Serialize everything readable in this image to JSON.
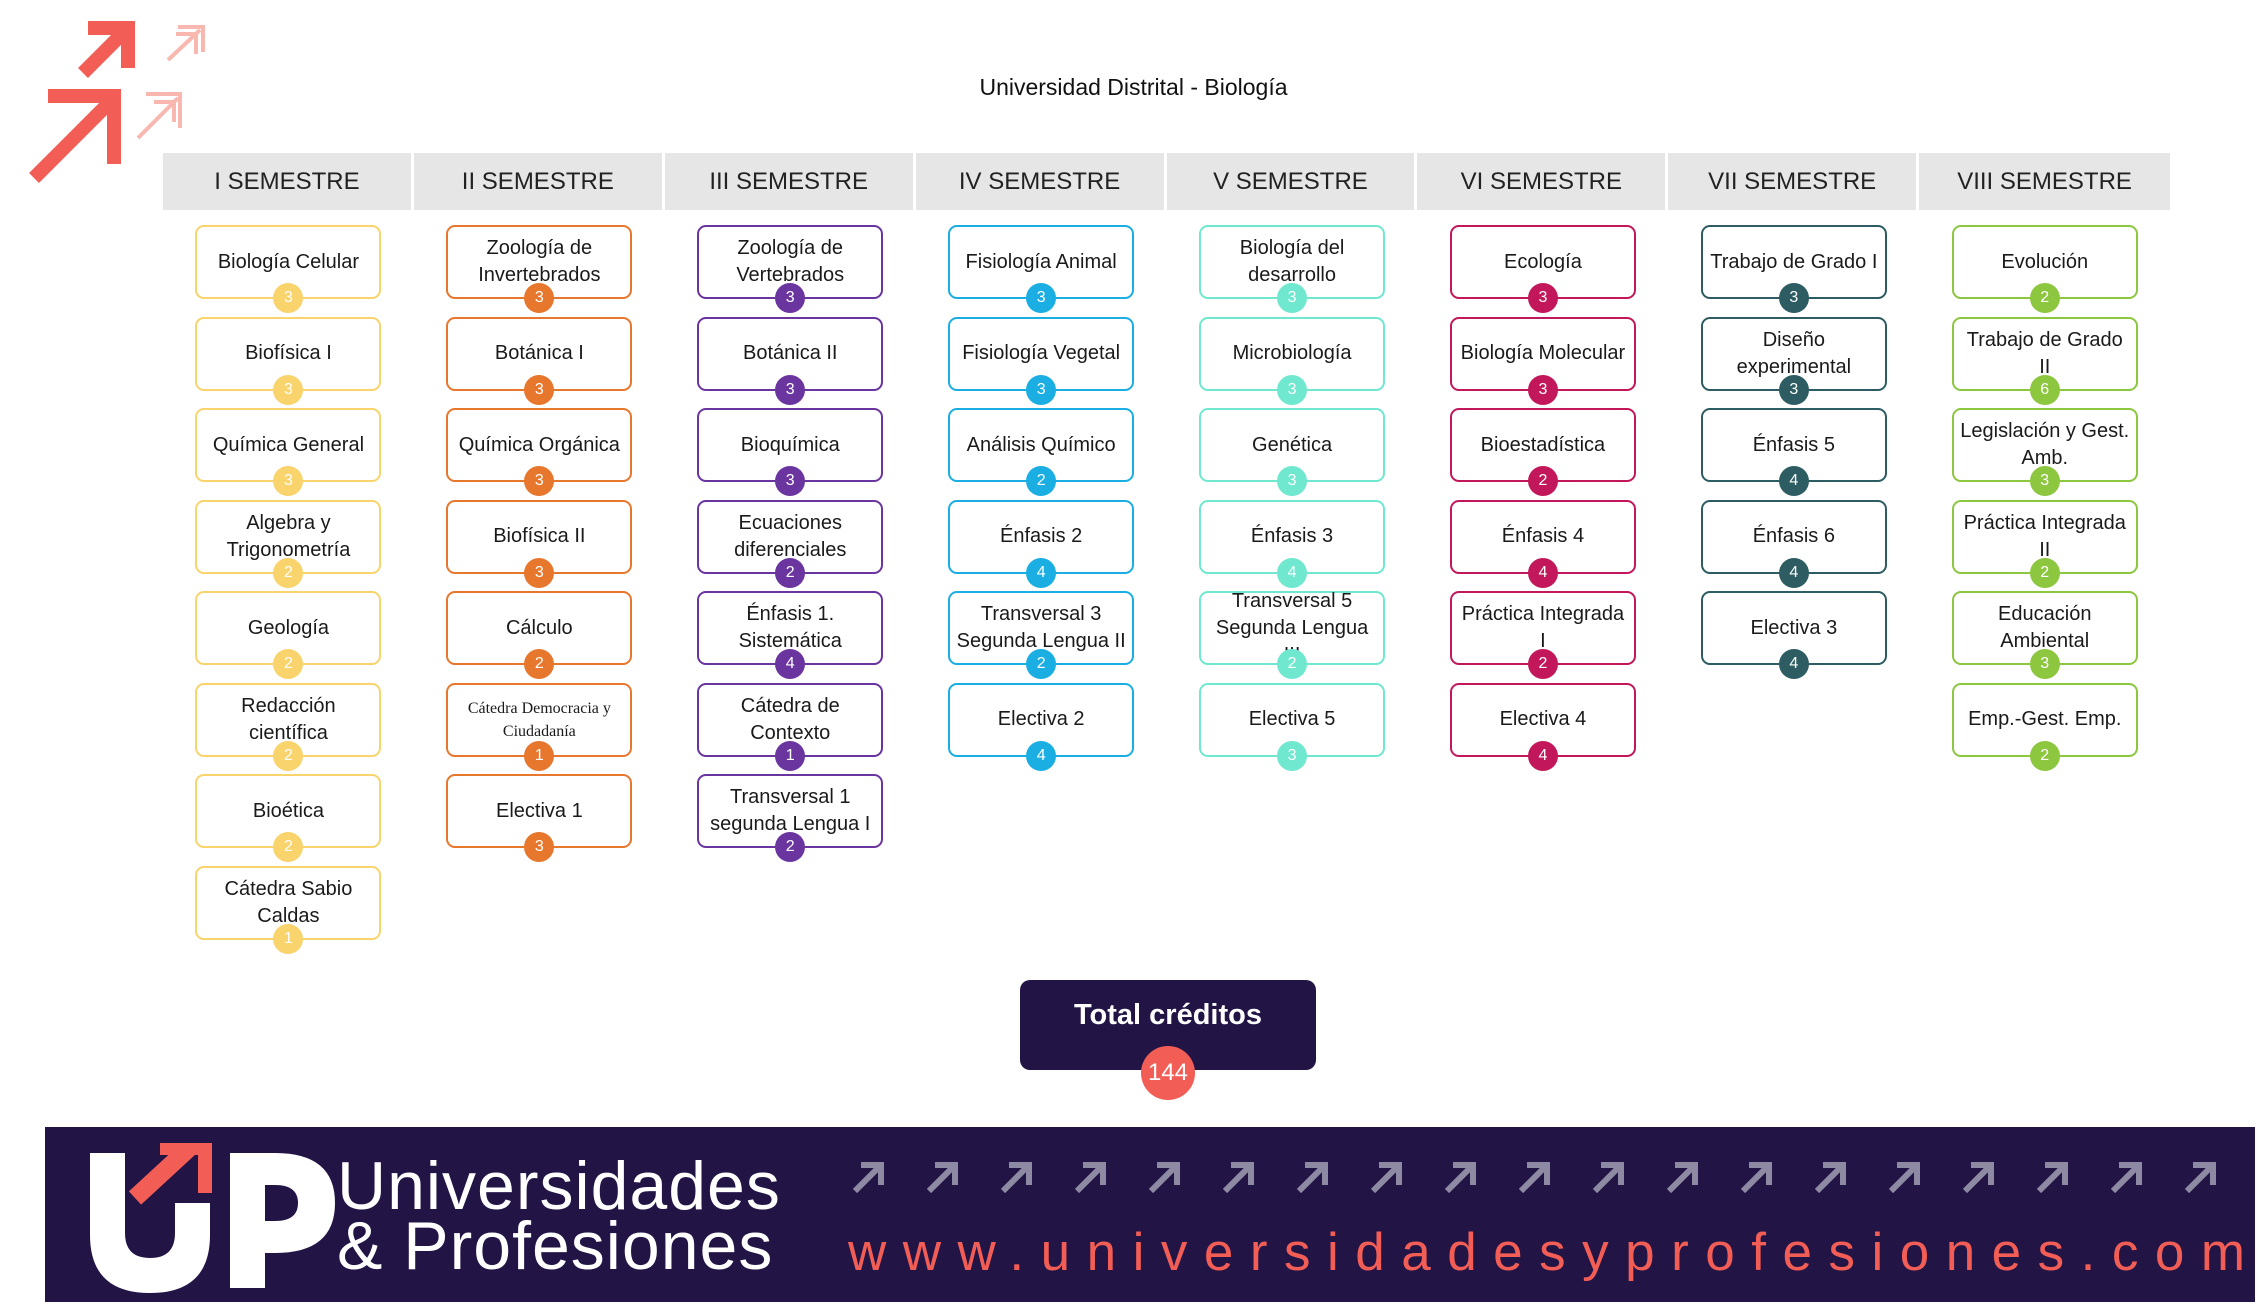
{
  "title": "Universidad Distrital - Biología",
  "semesters": [
    {
      "name": "I SEMESTRE",
      "color": "#f9d36b",
      "courses": [
        {
          "name": "Biología Celular",
          "credits": "3"
        },
        {
          "name": "Biofísica I",
          "credits": "3"
        },
        {
          "name": "Química General",
          "credits": "3"
        },
        {
          "name": "Algebra y Trigonometría",
          "credits": "2"
        },
        {
          "name": "Geología",
          "credits": "2"
        },
        {
          "name": "Redacción científica",
          "credits": "2"
        },
        {
          "name": "Bioética",
          "credits": "2"
        },
        {
          "name": "Cátedra Sabio Caldas",
          "credits": "1"
        }
      ]
    },
    {
      "name": "II SEMESTRE",
      "color": "#e8772e",
      "courses": [
        {
          "name": "Zoología de Invertebrados",
          "credits": "3"
        },
        {
          "name": "Botánica I",
          "credits": "3"
        },
        {
          "name": "Química Orgánica",
          "credits": "3"
        },
        {
          "name": "Biofísica II",
          "credits": "3"
        },
        {
          "name": "Cálculo",
          "credits": "2"
        },
        {
          "name": "Cátedra Democracia y Ciudadanía",
          "credits": "1"
        },
        {
          "name": "Electiva 1",
          "credits": "3"
        }
      ]
    },
    {
      "name": "III SEMESTRE",
      "color": "#6b35a0",
      "courses": [
        {
          "name": "Zoología de Vertebrados",
          "credits": "3"
        },
        {
          "name": "Botánica II",
          "credits": "3"
        },
        {
          "name": "Bioquímica",
          "credits": "3"
        },
        {
          "name": "Ecuaciones diferenciales",
          "credits": "2"
        },
        {
          "name": "Énfasis 1. Sistemática",
          "credits": "4"
        },
        {
          "name": "Cátedra de Contexto",
          "credits": "1"
        },
        {
          "name": "Transversal 1 segunda Lengua I",
          "credits": "2"
        }
      ]
    },
    {
      "name": "IV SEMESTRE",
      "color": "#1aaee3",
      "courses": [
        {
          "name": "Fisiología Animal",
          "credits": "3"
        },
        {
          "name": "Fisiología Vegetal",
          "credits": "3"
        },
        {
          "name": "Análisis Químico",
          "credits": "2"
        },
        {
          "name": "Énfasis 2",
          "credits": "4"
        },
        {
          "name": "Transversal 3 Segunda Lengua II",
          "credits": "2"
        },
        {
          "name": "Electiva 2",
          "credits": "4"
        }
      ]
    },
    {
      "name": "V SEMESTRE",
      "color": "#6fe8cf",
      "courses": [
        {
          "name": "Biología del desarrollo",
          "credits": "3"
        },
        {
          "name": "Microbiología",
          "credits": "3"
        },
        {
          "name": "Genética",
          "credits": "3"
        },
        {
          "name": "Énfasis 3",
          "credits": "4"
        },
        {
          "name": "Transversal 5 Segunda Lengua III",
          "credits": "2"
        },
        {
          "name": "Electiva 5",
          "credits": "3"
        }
      ]
    },
    {
      "name": "VI SEMESTRE",
      "color": "#c2185b",
      "courses": [
        {
          "name": "Ecología",
          "credits": "3"
        },
        {
          "name": "Biología Molecular",
          "credits": "3"
        },
        {
          "name": "Bioestadística",
          "credits": "2"
        },
        {
          "name": "Énfasis 4",
          "credits": "4"
        },
        {
          "name": "Práctica Integrada I",
          "credits": "2"
        },
        {
          "name": "Electiva 4",
          "credits": "4"
        }
      ]
    },
    {
      "name": "VII SEMESTRE",
      "color": "#2d5d62",
      "courses": [
        {
          "name": "Trabajo de Grado I",
          "credits": "3"
        },
        {
          "name": "Diseño experimental",
          "credits": "3"
        },
        {
          "name": "Énfasis 5",
          "credits": "4"
        },
        {
          "name": "Énfasis 6",
          "credits": "4"
        },
        {
          "name": "Electiva 3",
          "credits": "4"
        }
      ]
    },
    {
      "name": "VIII SEMESTRE",
      "color": "#8dc63f",
      "courses": [
        {
          "name": "Evolución",
          "credits": "2"
        },
        {
          "name": "Trabajo de Grado II",
          "credits": "6"
        },
        {
          "name": "Legislación y Gest. Amb.",
          "credits": "3"
        },
        {
          "name": "Práctica Integrada II",
          "credits": "2"
        },
        {
          "name": "Educación Ambiental",
          "credits": "3"
        },
        {
          "name": "Emp.-Gest. Emp.",
          "credits": "2"
        }
      ]
    }
  ],
  "total": {
    "label": "Total créditos",
    "value": "144"
  },
  "footer": {
    "brand_line1": "Universidades",
    "brand_line2": "& Profesiones",
    "website": "www.universidadesyprofesiones.com"
  },
  "colors": {
    "navy": "#231446",
    "coral": "#f25e55"
  }
}
